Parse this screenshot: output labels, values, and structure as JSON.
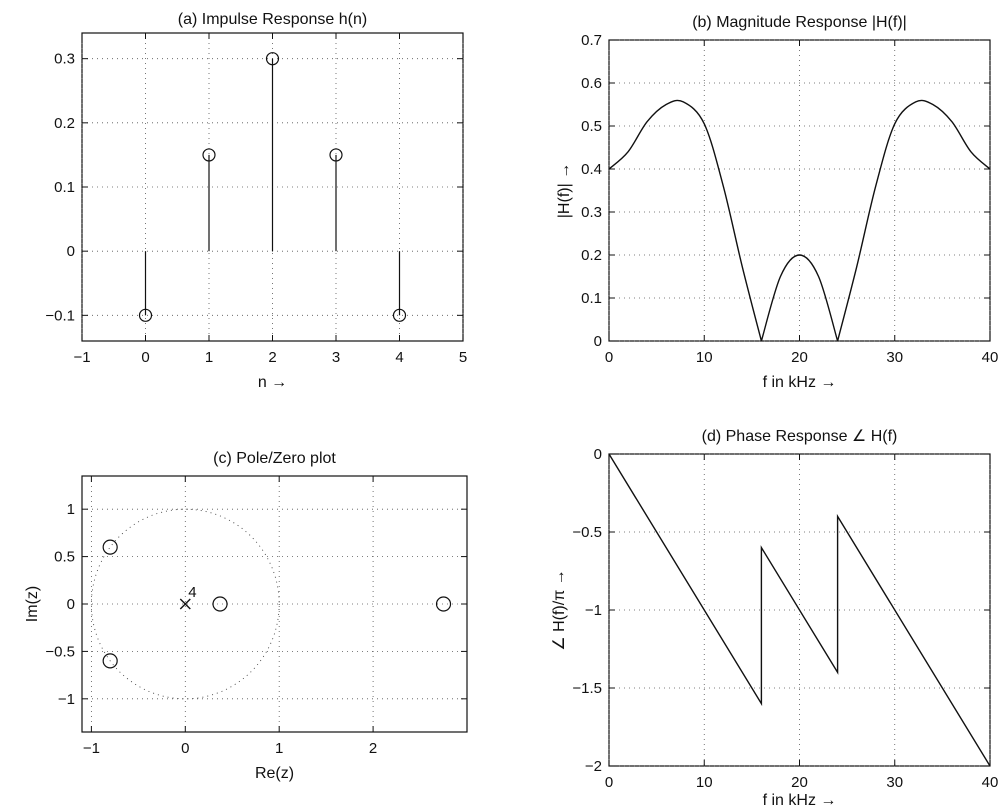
{
  "chart_data": [
    {
      "type": "stem",
      "title": "(a) Impulse Response h(n)",
      "xlabel": "n →",
      "ylabel": "",
      "xlim": [
        -1,
        5
      ],
      "ylim": [
        -0.14,
        0.34
      ],
      "xticks": [
        -1,
        0,
        1,
        2,
        3,
        4,
        5
      ],
      "yticks": [
        -0.1,
        0,
        0.1,
        0.2,
        0.3
      ],
      "grid": true,
      "x": [
        0,
        1,
        2,
        3,
        4
      ],
      "y": [
        -0.1,
        0.15,
        0.3,
        0.15,
        -0.1
      ],
      "marker": "circle"
    },
    {
      "type": "line",
      "title": "(b) Magnitude Response |H(f)|",
      "xlabel": "f in kHz  →",
      "ylabel": "|H(f)| →",
      "xlim": [
        0,
        40
      ],
      "ylim": [
        0,
        0.7
      ],
      "xticks": [
        0,
        10,
        20,
        30,
        40
      ],
      "yticks": [
        0,
        0.1,
        0.2,
        0.3,
        0.4,
        0.5,
        0.6,
        0.7
      ],
      "grid": true,
      "series": [
        {
          "x": [
            0,
            2,
            4,
            6,
            7.8,
            10,
            12,
            14,
            16,
            18,
            20,
            22,
            24,
            26,
            28,
            30,
            32.2,
            34,
            36,
            38,
            40
          ],
          "y": [
            0.4,
            0.44,
            0.51,
            0.55,
            0.556,
            0.505,
            0.36,
            0.172,
            0.0,
            0.15,
            0.2,
            0.15,
            0.0,
            0.172,
            0.36,
            0.505,
            0.556,
            0.55,
            0.51,
            0.44,
            0.4
          ]
        }
      ]
    },
    {
      "type": "scatter",
      "title": "(c) Pole/Zero plot",
      "xlabel": "Re(z)",
      "ylabel": "Im(z)",
      "xlim": [
        -1.1,
        3.0
      ],
      "ylim": [
        -1.35,
        1.35
      ],
      "xticks": [
        -1,
        0,
        1,
        2
      ],
      "yticks": [
        -1,
        -0.5,
        0,
        0.5,
        1
      ],
      "grid": true,
      "unit_circle": true,
      "zeros": [
        {
          "x": -0.8,
          "y": 0.6
        },
        {
          "x": -0.8,
          "y": -0.6
        },
        {
          "x": 0.37,
          "y": 0
        },
        {
          "x": 2.75,
          "y": 0
        }
      ],
      "poles": [
        {
          "x": 0,
          "y": 0
        }
      ],
      "pole_multiplicity_label": "4"
    },
    {
      "type": "line",
      "title": "(d) Phase Response ∠ H(f)",
      "xlabel": "f  in kHz →",
      "ylabel": "∠ H(f)/π →",
      "xlim": [
        0,
        40
      ],
      "ylim": [
        -2,
        0
      ],
      "xticks": [
        0,
        10,
        20,
        30,
        40
      ],
      "yticks": [
        -2,
        -1.5,
        -1,
        -0.5,
        0
      ],
      "grid": true,
      "series": [
        {
          "x": [
            0,
            16,
            16,
            24,
            24,
            40
          ],
          "y": [
            0,
            -1.6,
            -0.6,
            -1.4,
            -0.4,
            -2.0
          ]
        }
      ]
    }
  ]
}
